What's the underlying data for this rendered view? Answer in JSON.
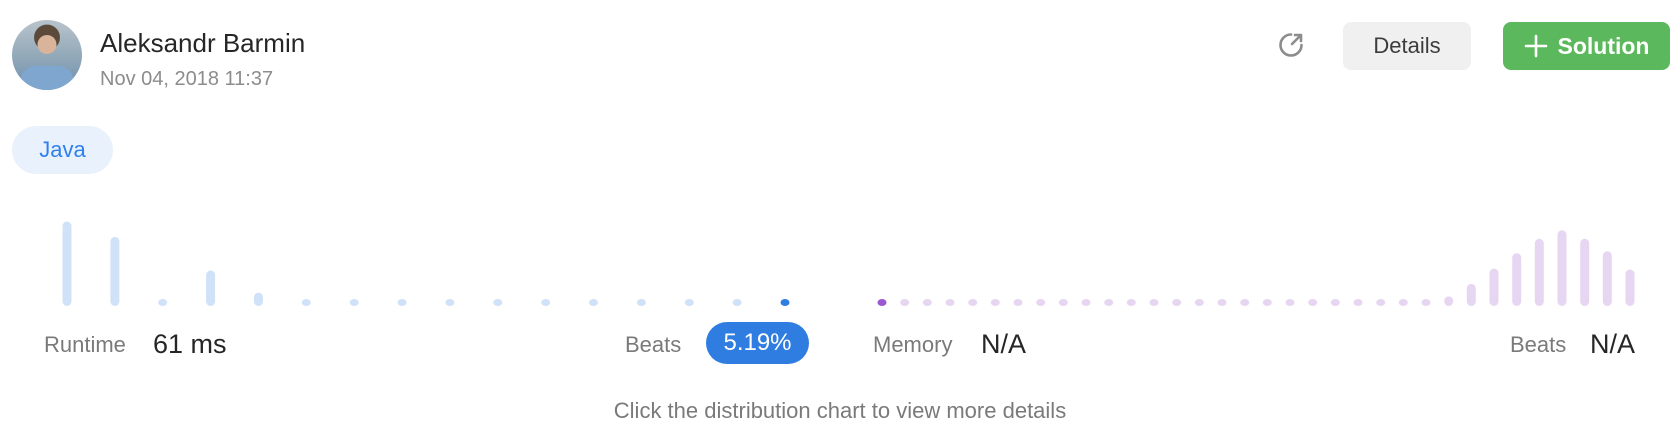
{
  "author": {
    "name": "Aleksandr Barmin",
    "timestamp": "Nov 04, 2018 11:37"
  },
  "toolbar": {
    "share_icon": "share-external-icon",
    "details_label": "Details",
    "solution_label": "Solution",
    "solution_icon": "plus-icon"
  },
  "language_tag": "Java",
  "runtime": {
    "label": "Runtime",
    "value": "61 ms",
    "beats_label": "Beats",
    "beats_value": "5.19%"
  },
  "memory": {
    "label": "Memory",
    "value": "N/A",
    "beats_label": "Beats",
    "beats_value": "N/A"
  },
  "hint": "Click the distribution chart to view more details",
  "colors": {
    "runtime_bar": "#cfe2f8",
    "runtime_highlight": "#2f7de1",
    "memory_bar": "#e7d6f2",
    "memory_highlight": "#9b59d0",
    "solution_green": "#5cb85c"
  },
  "chart_data": [
    {
      "type": "bar",
      "series": [
        {
          "values": [
            0.88,
            0.72,
            0.06,
            0.37,
            0.14,
            0.05,
            0.05,
            0.05,
            0.05,
            0.05,
            0.05,
            0.05,
            0.05,
            0.05,
            0.05,
            0.05
          ]
        }
      ],
      "highlight_index": 15
    },
    {
      "type": "bar",
      "series": [
        {
          "values": [
            0.05,
            0.05,
            0.05,
            0.05,
            0.05,
            0.05,
            0.05,
            0.05,
            0.05,
            0.05,
            0.05,
            0.05,
            0.05,
            0.05,
            0.05,
            0.05,
            0.05,
            0.05,
            0.05,
            0.05,
            0.05,
            0.05,
            0.05,
            0.05,
            0.05,
            0.1,
            0.23,
            0.39,
            0.55,
            0.7,
            0.79,
            0.7,
            0.57,
            0.38
          ]
        }
      ],
      "highlight_index": 0
    }
  ]
}
